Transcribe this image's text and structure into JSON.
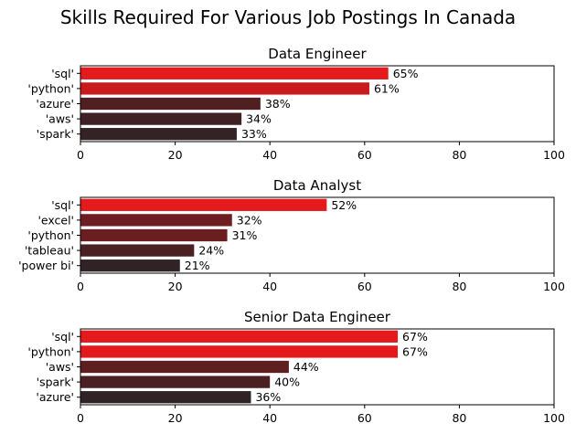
{
  "figure": {
    "title": "Skills Required For Various Job Postings In Canada"
  },
  "chart_data": [
    {
      "type": "bar",
      "orientation": "horizontal",
      "title": "Data Engineer",
      "categories": [
        "'sql'",
        "'python'",
        "'azure'",
        "'aws'",
        "'spark'"
      ],
      "values": [
        65,
        61,
        38,
        34,
        33
      ],
      "labels": [
        "65%",
        "61%",
        "38%",
        "34%",
        "33%"
      ],
      "xlim": [
        0,
        100
      ],
      "xticks": [
        0,
        20,
        40,
        60,
        80,
        100
      ],
      "grid": false,
      "colors": [
        "#e41a1c",
        "#c91b1d",
        "#4f1f21",
        "#3f2123",
        "#332324"
      ]
    },
    {
      "type": "bar",
      "orientation": "horizontal",
      "title": "Data Analyst",
      "categories": [
        "'sql'",
        "'excel'",
        "'python'",
        "'tableau'",
        "'power bi'"
      ],
      "values": [
        52,
        32,
        31,
        24,
        21
      ],
      "labels": [
        "52%",
        "32%",
        "31%",
        "24%",
        "21%"
      ],
      "xlim": [
        0,
        100
      ],
      "xticks": [
        0,
        20,
        40,
        60,
        80,
        100
      ],
      "grid": false,
      "colors": [
        "#e41a1c",
        "#6e1e20",
        "#6b1e20",
        "#4a2022",
        "#302325"
      ]
    },
    {
      "type": "bar",
      "orientation": "horizontal",
      "title": "Senior Data Engineer",
      "categories": [
        "'sql'",
        "'python'",
        "'aws'",
        "'spark'",
        "'azure'"
      ],
      "values": [
        67,
        67,
        44,
        40,
        36
      ],
      "labels": [
        "67%",
        "67%",
        "44%",
        "40%",
        "36%"
      ],
      "xlim": [
        0,
        100
      ],
      "xticks": [
        0,
        20,
        40,
        60,
        80,
        100
      ],
      "grid": false,
      "colors": [
        "#e41a1c",
        "#e21a1c",
        "#5f1f21",
        "#4b2022",
        "#302325"
      ]
    }
  ]
}
